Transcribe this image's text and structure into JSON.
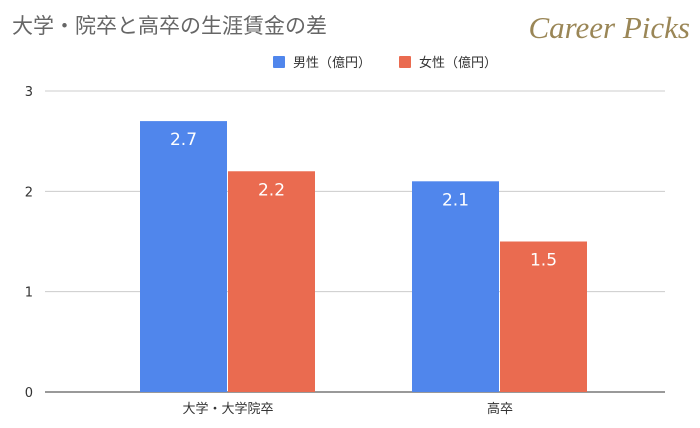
{
  "title": "大学・院卒と高卒の生涯賃金の差",
  "logo": "Career Picks",
  "chart_data": {
    "type": "bar",
    "title": "大学・院卒と高卒の生涯賃金の差",
    "categories": [
      "大学・大学院卒",
      "高卒"
    ],
    "series": [
      {
        "name": "男性（億円）",
        "values": [
          2.7,
          2.1
        ],
        "color": "#5086ec"
      },
      {
        "name": "女性（億円）",
        "values": [
          2.2,
          1.5
        ],
        "color": "#ea6b50"
      }
    ],
    "ylim": [
      0,
      3
    ],
    "yticks": [
      "0",
      "1",
      "2",
      "3"
    ],
    "grid": true,
    "legend": "top",
    "xlabel": "",
    "ylabel": ""
  }
}
